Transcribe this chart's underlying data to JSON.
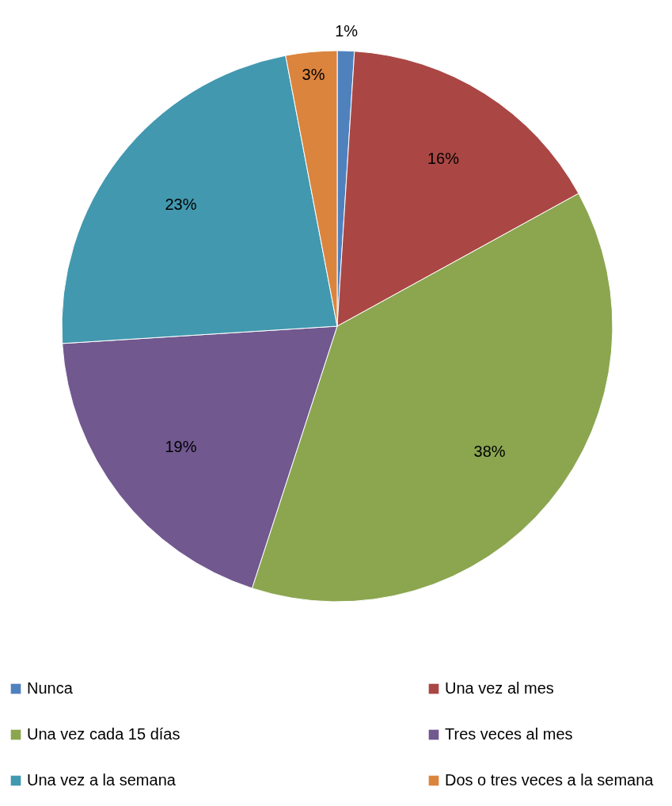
{
  "chart_data": {
    "type": "pie",
    "categories": [
      "Nunca",
      "Una vez al mes",
      "Una vez cada 15 días",
      "Tres veces al mes",
      "Una vez a la semana",
      "Dos o tres veces a la semana"
    ],
    "values": [
      1,
      16,
      38,
      19,
      23,
      3
    ],
    "colors": [
      "#4f81bd",
      "#aa4744",
      "#8ba64f",
      "#71588f",
      "#4298af",
      "#db843d"
    ],
    "value_labels": [
      "1%",
      "16%",
      "38%",
      "19%",
      "23%",
      "3%"
    ],
    "legend": "bottom"
  }
}
